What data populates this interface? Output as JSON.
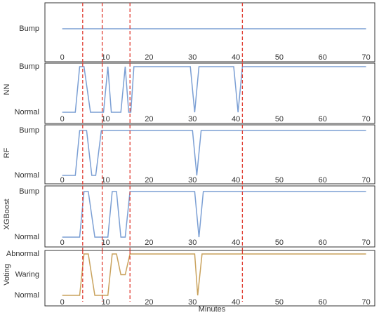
{
  "chart_data": [
    {
      "type": "line",
      "xlim": [
        -4,
        72
      ],
      "xticks": [
        0,
        10,
        20,
        30,
        40,
        50,
        60,
        70
      ],
      "ylim": [
        0,
        2
      ],
      "yticks": [
        {
          "value": 1,
          "label": "Bump"
        }
      ],
      "series": [
        {
          "color": "#7b9fd4",
          "x": [
            0,
            70
          ],
          "values": [
            1,
            1
          ]
        }
      ],
      "vlines": {
        "color": "#e03c31",
        "x": [
          4.7,
          9.2,
          15.6,
          41.5
        ]
      }
    },
    {
      "type": "line",
      "ylabel": "NN",
      "xlim": [
        -4,
        72
      ],
      "xticks": [
        0,
        10,
        20,
        30,
        40,
        50,
        60,
        70
      ],
      "ylim": [
        0,
        1
      ],
      "yticks": [
        {
          "value": 0,
          "label": "Normal"
        },
        {
          "value": 1,
          "label": "Bump"
        }
      ],
      "series": [
        {
          "color": "#7b9fd4",
          "x": [
            0,
            3,
            4,
            5,
            6.5,
            9.5,
            10.5,
            11.3,
            13.5,
            14.5,
            15.3,
            15.8,
            16.5,
            29.5,
            30.5,
            31.5,
            39.5,
            40.5,
            41.5,
            70
          ],
          "values": [
            0,
            0,
            1,
            1,
            0,
            0,
            1,
            0,
            0,
            1,
            0,
            0,
            1,
            1,
            0,
            1,
            1,
            0,
            1,
            1
          ]
        }
      ],
      "vlines": {
        "color": "#e03c31",
        "x": [
          4.7,
          9.2,
          15.6,
          41.5
        ]
      }
    },
    {
      "type": "line",
      "ylabel": "RF",
      "xlim": [
        -4,
        72
      ],
      "xticks": [
        0,
        10,
        20,
        30,
        40,
        50,
        60,
        70
      ],
      "ylim": [
        0,
        1
      ],
      "yticks": [
        {
          "value": 0,
          "label": "Normal"
        },
        {
          "value": 1,
          "label": "Bump"
        }
      ],
      "series": [
        {
          "color": "#7b9fd4",
          "x": [
            0,
            3,
            4,
            5.6,
            6.8,
            7.7,
            9,
            30,
            31,
            32,
            70
          ],
          "values": [
            0,
            0,
            1,
            1,
            0,
            0,
            1,
            1,
            0,
            1,
            1
          ]
        }
      ],
      "vlines": {
        "color": "#e03c31",
        "x": [
          4.7,
          9.2,
          15.6,
          41.5
        ]
      }
    },
    {
      "type": "line",
      "ylabel": "XGBoost",
      "xlim": [
        -4,
        72
      ],
      "xticks": [
        0,
        10,
        20,
        30,
        40,
        50,
        60,
        70
      ],
      "ylim": [
        0,
        1
      ],
      "yticks": [
        {
          "value": 0,
          "label": "Normal"
        },
        {
          "value": 1,
          "label": "Bump"
        }
      ],
      "series": [
        {
          "color": "#7b9fd4",
          "x": [
            0,
            4,
            5,
            6,
            7.5,
            10.5,
            11.5,
            12.5,
            13.5,
            14.5,
            15.6,
            30.5,
            31.5,
            32.5,
            70
          ],
          "values": [
            0,
            0,
            1,
            1,
            0,
            0,
            1,
            1,
            0,
            0,
            1,
            1,
            0,
            1,
            1
          ]
        }
      ],
      "vlines": {
        "color": "#e03c31",
        "x": [
          4.7,
          9.2,
          15.6,
          41.5
        ]
      }
    },
    {
      "type": "line",
      "ylabel": "Voting",
      "xlabel": "Minutes",
      "xlim": [
        -4,
        72
      ],
      "xticks": [
        0,
        10,
        20,
        30,
        40,
        50,
        60,
        70
      ],
      "ylim": [
        0,
        2
      ],
      "yticks": [
        {
          "value": 0,
          "label": "Normal"
        },
        {
          "value": 1,
          "label": "Waring"
        },
        {
          "value": 2,
          "label": "Abnormal"
        }
      ],
      "series": [
        {
          "color": "#c9a25c",
          "x": [
            0,
            4,
            5,
            6,
            7.5,
            10.5,
            11.5,
            12.5,
            13.5,
            14.5,
            15.6,
            30.5,
            31.2,
            32.2,
            70
          ],
          "values": [
            0,
            0,
            2,
            2,
            0,
            0,
            2,
            2,
            1,
            1,
            2,
            2,
            0,
            2,
            2
          ]
        }
      ],
      "vlines": {
        "color": "#e03c31",
        "x": [
          4.7,
          9.2,
          15.6,
          41.5
        ]
      }
    }
  ]
}
